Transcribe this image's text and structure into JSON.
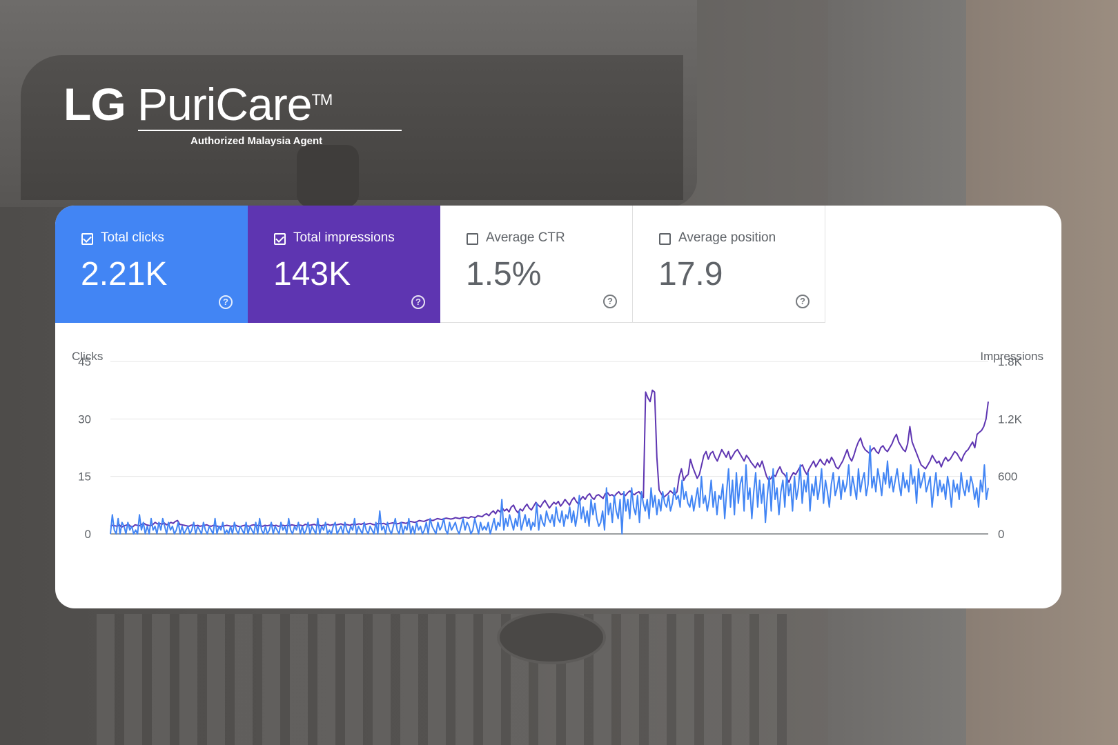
{
  "brand": {
    "name_bold": "LG",
    "name_light": "PuriCare",
    "trademark": "TM",
    "tagline": "Authorized Malaysia Agent"
  },
  "metrics": [
    {
      "label": "Total clicks",
      "value": "2.21K",
      "checked": true,
      "color": "#4285f4"
    },
    {
      "label": "Total impressions",
      "value": "143K",
      "checked": true,
      "color": "#5e35b1"
    },
    {
      "label": "Average CTR",
      "value": "1.5%",
      "checked": false,
      "color": "#ffffff"
    },
    {
      "label": "Average position",
      "value": "17.9",
      "checked": false,
      "color": "#ffffff"
    }
  ],
  "help_glyph": "?",
  "chart_data": {
    "type": "line",
    "y_left": {
      "label": "Clicks",
      "ticks": [
        "45",
        "30",
        "15",
        "0"
      ],
      "range": [
        0,
        45
      ]
    },
    "y_right": {
      "label": "Impressions",
      "ticks": [
        "1.8K",
        "1.2K",
        "600",
        "0"
      ],
      "range": [
        0,
        1800
      ]
    },
    "grid": true,
    "series": [
      {
        "color": "#4285f4",
        "axis": "left",
        "values": [
          0,
          5,
          1,
          0,
          4,
          0,
          3,
          2,
          0,
          3,
          1,
          2,
          0,
          1,
          0,
          5,
          1,
          3,
          0,
          2,
          0,
          4,
          1,
          2,
          0,
          3,
          1,
          4,
          2,
          0,
          3,
          1,
          2,
          0,
          1,
          3,
          0,
          2,
          0,
          1,
          2,
          0,
          1,
          3,
          0,
          2,
          1,
          0,
          3,
          1,
          0,
          2,
          1,
          0,
          4,
          0,
          2,
          1,
          3,
          0,
          1,
          0,
          2,
          0,
          3,
          1,
          0,
          2,
          1,
          0,
          3,
          0,
          2,
          1,
          0,
          3,
          0,
          4,
          1,
          0,
          2,
          0,
          1,
          3,
          0,
          2,
          1,
          0,
          3,
          1,
          2,
          0,
          4,
          1,
          0,
          2,
          1,
          3,
          0,
          2,
          0,
          1,
          3,
          0,
          2,
          1,
          0,
          4,
          0,
          2,
          1,
          3,
          0,
          1,
          0,
          2,
          3,
          0,
          1,
          2,
          0,
          3,
          1,
          0,
          2,
          1,
          4,
          0,
          2,
          1,
          0,
          3,
          1,
          0,
          2,
          1,
          0,
          3,
          0,
          6,
          1,
          2,
          0,
          3,
          1,
          0,
          2,
          4,
          1,
          0,
          3,
          0,
          2,
          1,
          4,
          0,
          2,
          0,
          3,
          1,
          2,
          0,
          1,
          3,
          0,
          4,
          2,
          1,
          0,
          3,
          1,
          2,
          4,
          1,
          0,
          3,
          1,
          2,
          3,
          1,
          0,
          2,
          4,
          1,
          3,
          2,
          0,
          1,
          4,
          2,
          0,
          3,
          1,
          2,
          1,
          3,
          0,
          2,
          4,
          1,
          3,
          2,
          9,
          1,
          4,
          2,
          5,
          3,
          1,
          4,
          2,
          6,
          1,
          3,
          5,
          2,
          4,
          1,
          3,
          2,
          8,
          1,
          5,
          3,
          2,
          6,
          4,
          3,
          5,
          2,
          7,
          4,
          3,
          6,
          2,
          5,
          4,
          7,
          3,
          6,
          2,
          5,
          10,
          4,
          7,
          3,
          6,
          2,
          9,
          5,
          8,
          4,
          2,
          3,
          6,
          1,
          12,
          5,
          8,
          3,
          10,
          6,
          4,
          9,
          0,
          11,
          6,
          9,
          4,
          12,
          7,
          5,
          10,
          3,
          11,
          8,
          6,
          9,
          4,
          12,
          7,
          10,
          5,
          9,
          6,
          11,
          8,
          7,
          10,
          6,
          8,
          12,
          9,
          10,
          7,
          14,
          9,
          11,
          8,
          7,
          10,
          6,
          9,
          12,
          7,
          15,
          8,
          10,
          6,
          9,
          14,
          7,
          11,
          5,
          10,
          9,
          13,
          4,
          11,
          17,
          7,
          14,
          5,
          16,
          8,
          13,
          15,
          6,
          18,
          9,
          12,
          4,
          11,
          16,
          7,
          14,
          8,
          13,
          3,
          10,
          15,
          6,
          17,
          9,
          12,
          5,
          11,
          14,
          7,
          16,
          10,
          13,
          6,
          15,
          9,
          12,
          18,
          8,
          14,
          11,
          16,
          6,
          13,
          10,
          15,
          9,
          12,
          17,
          8,
          14,
          11,
          7,
          13,
          16,
          10,
          12,
          15,
          9,
          14,
          11,
          13,
          18,
          10,
          15,
          12,
          9,
          17,
          11,
          14,
          16,
          10,
          13,
          23,
          12,
          15,
          11,
          17,
          14,
          10,
          16,
          13,
          19,
          12,
          15,
          11,
          14,
          17,
          13,
          10,
          16,
          12,
          14,
          11,
          18,
          13,
          15,
          8,
          17,
          12,
          14,
          16,
          11,
          13,
          15,
          7,
          12,
          16,
          10,
          14,
          11,
          13,
          9,
          15,
          12,
          7,
          14,
          11,
          13,
          9,
          16,
          12,
          10,
          14,
          11,
          15,
          13,
          9,
          12,
          7,
          14,
          11,
          18,
          9,
          12
        ]
      },
      {
        "color": "#5e35b1",
        "axis": "right",
        "values": [
          80,
          90,
          85,
          80,
          95,
          70,
          85,
          90,
          100,
          80,
          75,
          95,
          90,
          85,
          100,
          110,
          95,
          90,
          85,
          100,
          120,
          105,
          110,
          100,
          115,
          95,
          105,
          120,
          110,
          130,
          140,
          100,
          95,
          90,
          85,
          80,
          90,
          95,
          85,
          90,
          80,
          85,
          90,
          95,
          85,
          80,
          90,
          85,
          80,
          75,
          80,
          85,
          90,
          85,
          80,
          85,
          90,
          80,
          75,
          85,
          90,
          85,
          80,
          90,
          95,
          85,
          90,
          85,
          80,
          90,
          85,
          90,
          95,
          85,
          90,
          80,
          85,
          90,
          85,
          90,
          85,
          95,
          90,
          85,
          95,
          90,
          85,
          100,
          95,
          90,
          95,
          100,
          90,
          95,
          85,
          90,
          95,
          100,
          90,
          95,
          100,
          95,
          100,
          105,
          95,
          100,
          95,
          90,
          100,
          95,
          100,
          105,
          100,
          110,
          100,
          105,
          110,
          100,
          95,
          105,
          110,
          105,
          110,
          100,
          105,
          110,
          115,
          110,
          105,
          110,
          120,
          115,
          110,
          120,
          130,
          125,
          120,
          130,
          140,
          135,
          130,
          140,
          150,
          145,
          140,
          150,
          160,
          155,
          150,
          160,
          165,
          160,
          155,
          160,
          170,
          165,
          160,
          170,
          175,
          170,
          165,
          180,
          175,
          170,
          190,
          185,
          180,
          200,
          210,
          190,
          220,
          240,
          210,
          250,
          230,
          270,
          240,
          260,
          230,
          280,
          300,
          250,
          220,
          260,
          240,
          280,
          310,
          270,
          250,
          290,
          330,
          300,
          280,
          320,
          350,
          310,
          270,
          300,
          330,
          310,
          340,
          290,
          320,
          360,
          330,
          300,
          350,
          380,
          340,
          310,
          360,
          390,
          360,
          400,
          420,
          380,
          360,
          400,
          410,
          390,
          370,
          420,
          430,
          400,
          410,
          390,
          420,
          440,
          410,
          420,
          400,
          430,
          450,
          420,
          410,
          430,
          440,
          410,
          380,
          1480,
          1420,
          1380,
          1500,
          1480,
          800,
          460,
          420,
          380,
          400,
          420,
          450,
          430,
          410,
          440,
          600,
          680,
          560,
          600,
          620,
          780,
          700,
          640,
          580,
          620,
          720,
          820,
          860,
          780,
          840,
          860,
          800,
          760,
          820,
          880,
          840,
          800,
          860,
          780,
          820,
          860,
          880,
          840,
          800,
          760,
          820,
          790,
          750,
          720,
          690,
          740,
          700,
          760,
          680,
          600,
          560,
          580,
          620,
          600,
          660,
          700,
          640,
          620,
          580,
          540,
          600,
          640,
          620,
          660,
          700,
          720,
          660,
          620,
          680,
          720,
          760,
          700,
          740,
          780,
          740,
          720,
          780,
          740,
          800,
          760,
          700,
          680,
          720,
          760,
          820,
          880,
          800,
          760,
          820,
          900,
          960,
          1000,
          920,
          880,
          860,
          840,
          880,
          900,
          860,
          840,
          900,
          920,
          880,
          860,
          900,
          940,
          1000,
          1040,
          960,
          920,
          880,
          860,
          940,
          1120,
          960,
          900,
          840,
          780,
          720,
          700,
          680,
          720,
          760,
          820,
          780,
          740,
          760,
          700,
          760,
          800,
          760,
          780,
          820,
          860,
          840,
          800,
          760,
          820,
          860,
          880,
          920,
          960,
          900,
          1040,
          1060,
          1080,
          1120,
          1200,
          1380
        ]
      }
    ]
  }
}
